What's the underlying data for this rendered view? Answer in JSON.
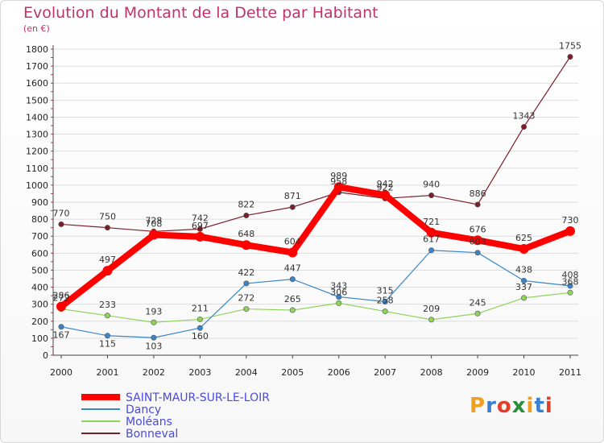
{
  "header": {
    "title": "Evolution du Montant de la Dette par Habitant",
    "subtitle": "(en €)"
  },
  "logo": {
    "text": "Proxiti",
    "colors": [
      "#f0a020",
      "#3a7fd0",
      "#e0402a",
      "#2a8f3a",
      "#f0a020",
      "#3a7fd0",
      "#e0402a"
    ]
  },
  "chart_data": {
    "type": "line",
    "categories": [
      "2000",
      "2001",
      "2002",
      "2003",
      "2004",
      "2005",
      "2006",
      "2007",
      "2008",
      "2009",
      "2010",
      "2011"
    ],
    "ylim": [
      0,
      1800
    ],
    "yticks": [
      0,
      100,
      200,
      300,
      400,
      500,
      600,
      700,
      800,
      900,
      1000,
      1100,
      1200,
      1300,
      1400,
      1500,
      1600,
      1700,
      1800
    ],
    "grid": true,
    "legend_position": "bottom-left",
    "series": [
      {
        "name": "SAINT-MAUR-SUR-LE-LOIR",
        "color": "#ff0000",
        "values": [
          286,
          497,
          708,
          697,
          648,
          604,
          989,
          942,
          721,
          676,
          625,
          730
        ]
      },
      {
        "name": "Dancy",
        "color": "#3a85c8",
        "values": [
          167,
          115,
          103,
          160,
          422,
          447,
          343,
          315,
          617,
          603,
          438,
          408
        ]
      },
      {
        "name": "Moléans",
        "color": "#8ed35a",
        "values": [
          272,
          233,
          193,
          211,
          272,
          265,
          306,
          258,
          209,
          245,
          337,
          368
        ]
      },
      {
        "name": "Bonneval",
        "color": "#7a1f2a",
        "values": [
          770,
          750,
          728,
          742,
          822,
          871,
          958,
          922,
          940,
          886,
          1343,
          1755
        ]
      }
    ]
  }
}
